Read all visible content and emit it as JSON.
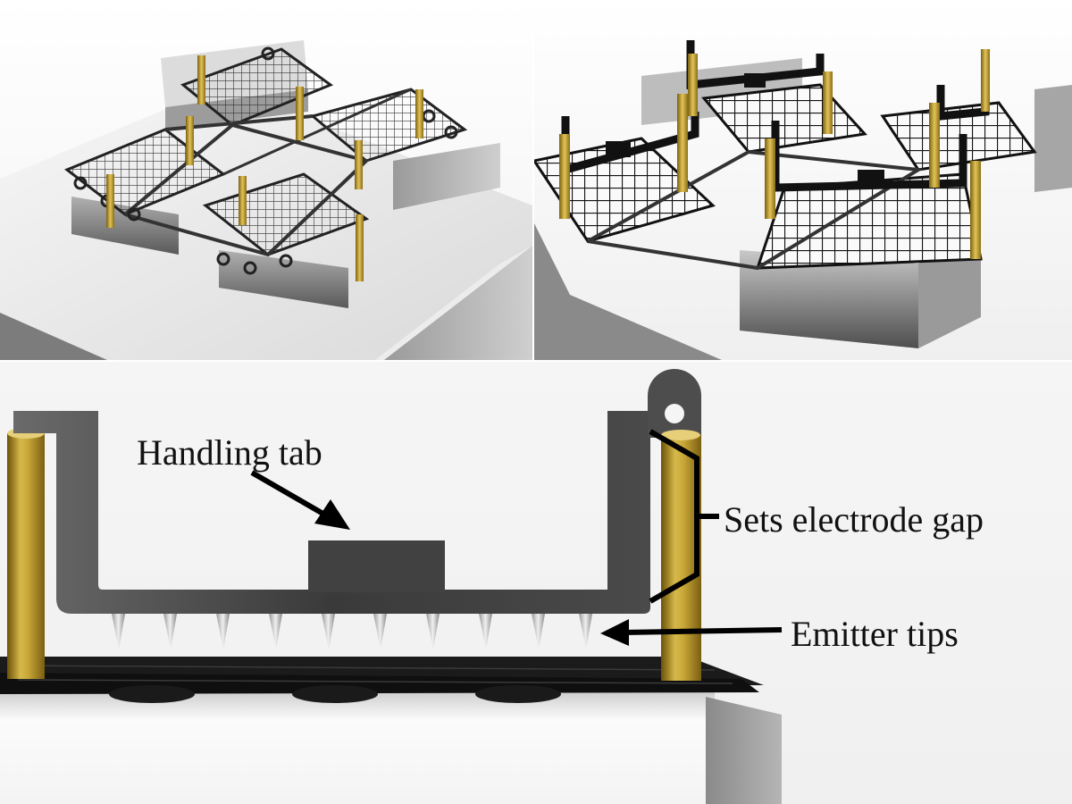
{
  "annotations": {
    "handling_tab": "Handling tab",
    "electrode_gap": "Sets electrode gap",
    "emitter_tips": "Emitter tips"
  },
  "colors": {
    "background": "#f4f4f4",
    "electrode_black": "#1a1a1a",
    "steel_light": "#e8e8e8",
    "steel_dark": "#6e6e6e",
    "pin_gold": "#b8962a",
    "arrow": "#000000"
  }
}
